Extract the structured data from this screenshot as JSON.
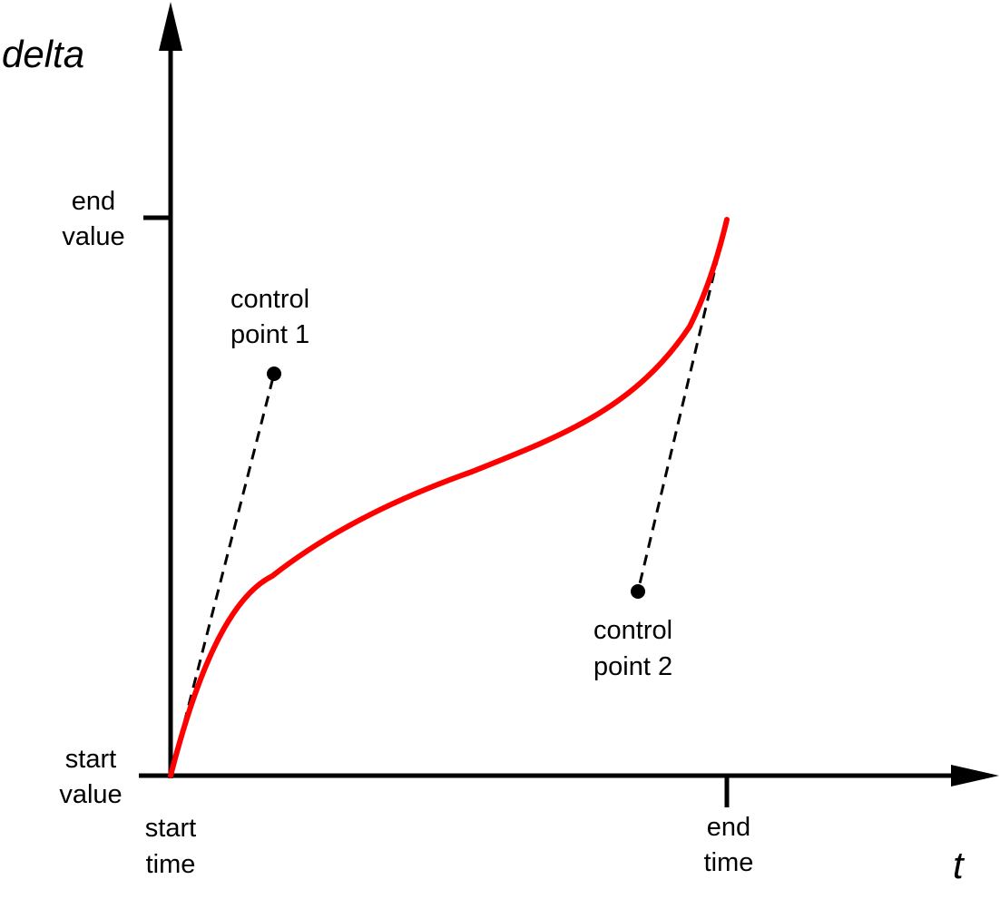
{
  "axes": {
    "y_label": "delta",
    "x_label": "t"
  },
  "y_ticks": {
    "end": [
      "end",
      "value"
    ],
    "start": [
      "start",
      "value"
    ]
  },
  "x_ticks": {
    "start": [
      "start",
      "time"
    ],
    "end": [
      "end",
      "time"
    ]
  },
  "control_points": {
    "cp1": [
      "control",
      "point 1"
    ],
    "cp2": [
      "control",
      "point 2"
    ]
  },
  "colors": {
    "curve": "#ff0000",
    "axis": "#000000",
    "handle": "#000000"
  }
}
